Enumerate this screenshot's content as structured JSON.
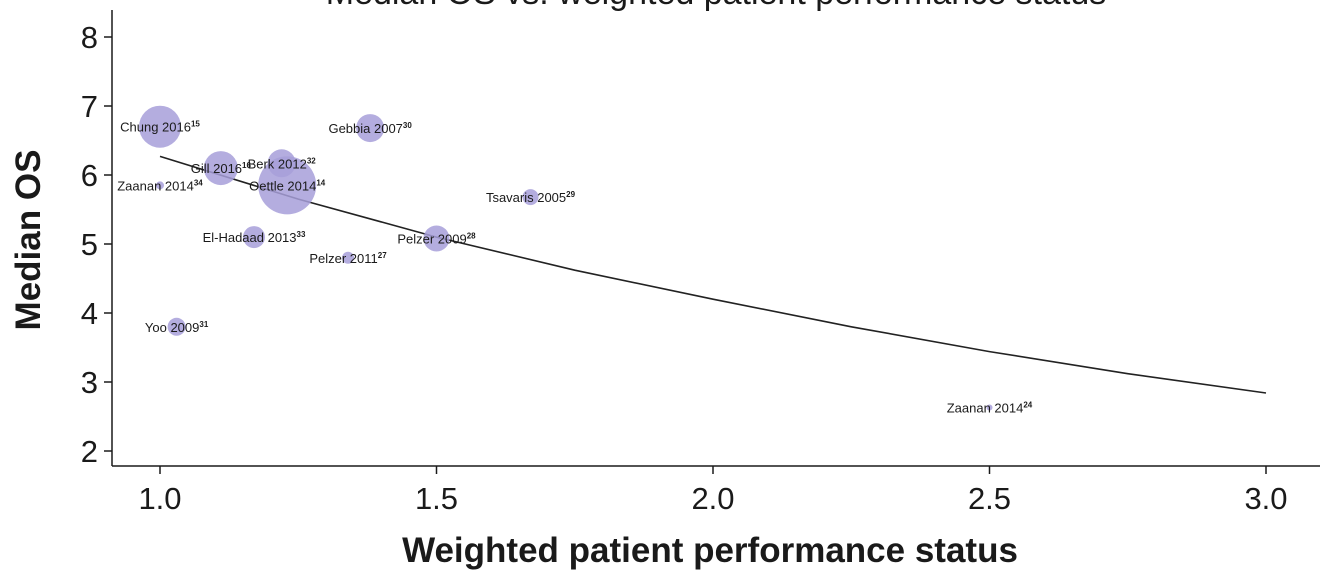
{
  "chart_data": {
    "type": "scatter",
    "title": "Median OS vs. weighted patient performance status",
    "xlabel": "Weighted patient performance status",
    "ylabel": "Median OS",
    "xlim": [
      0.92,
      3.1
    ],
    "ylim": [
      1.8,
      8.4
    ],
    "xticks": [
      "1.0",
      "1.5",
      "2.0",
      "2.5",
      "3.0"
    ],
    "yticks": [
      "2",
      "3",
      "4",
      "5",
      "6",
      "7",
      "8"
    ],
    "grid": false,
    "legend": "none",
    "bubble_color": "#a79fd9",
    "line_color": "#222222",
    "points": [
      {
        "label": "Chung 2016",
        "ref": "15",
        "x": 1.0,
        "y": 6.7,
        "size": 21
      },
      {
        "label": "Gebbia 2007",
        "ref": "30",
        "x": 1.38,
        "y": 6.68,
        "size": 14
      },
      {
        "label": "Gill 2016",
        "ref": "16",
        "x": 1.11,
        "y": 6.1,
        "size": 17
      },
      {
        "label": "Berk 2012",
        "ref": "32",
        "x": 1.22,
        "y": 6.17,
        "size": 14
      },
      {
        "label": "Oettle 2014",
        "ref": "14",
        "x": 1.23,
        "y": 5.85,
        "size": 29
      },
      {
        "label": "Zaanan 2014",
        "ref": "34",
        "x": 1.0,
        "y": 5.85,
        "size": 4
      },
      {
        "label": "Tsavaris 2005",
        "ref": "29",
        "x": 1.67,
        "y": 5.68,
        "size": 8
      },
      {
        "label": "El-Hadaad 2013",
        "ref": "33",
        "x": 1.17,
        "y": 5.1,
        "size": 11
      },
      {
        "label": "Pelzer 2009",
        "ref": "28",
        "x": 1.5,
        "y": 5.08,
        "size": 13
      },
      {
        "label": "Pelzer 2011",
        "ref": "27",
        "x": 1.34,
        "y": 4.8,
        "size": 6
      },
      {
        "label": "Yoo 2009",
        "ref": "31",
        "x": 1.03,
        "y": 3.8,
        "size": 9
      },
      {
        "label": "Zaanan 2014",
        "ref": "24",
        "x": 2.5,
        "y": 2.63,
        "size": 3
      }
    ],
    "fit_line": {
      "x": [
        1.0,
        1.25,
        1.5,
        1.75,
        2.0,
        2.25,
        2.5,
        2.75,
        3.0
      ],
      "y": [
        6.27,
        5.65,
        5.1,
        4.62,
        4.2,
        3.8,
        3.44,
        3.12,
        2.84
      ]
    }
  }
}
